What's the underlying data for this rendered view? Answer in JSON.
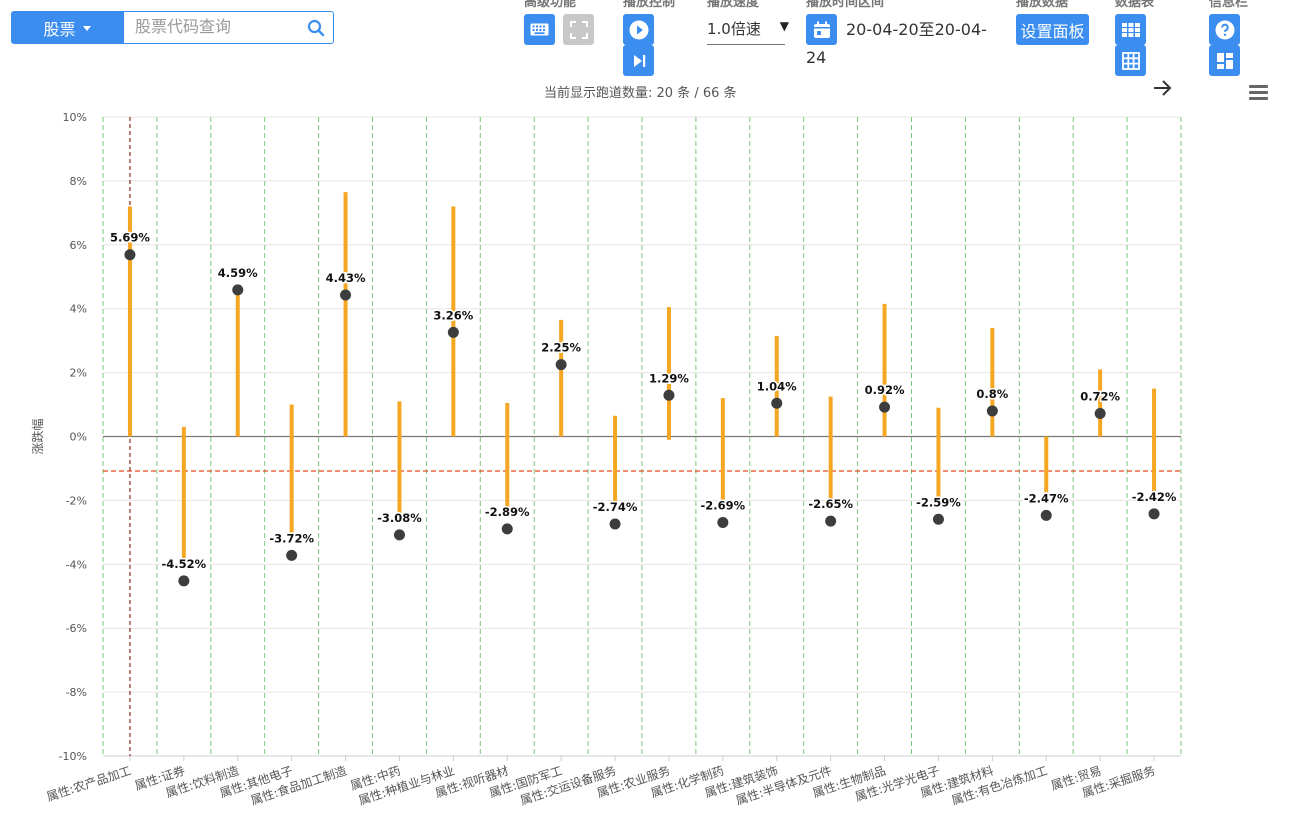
{
  "toolbar": {
    "stock_select_label": "股票",
    "search_placeholder": "股票代码查询",
    "groups": {
      "advanced": "高级功能",
      "play_control": "播放控制",
      "play_speed": "播放速度",
      "play_range": "播放时间区间",
      "play_data": "播放数据",
      "data_table": "数据表",
      "info_bar": "信息栏"
    },
    "speed_value": "1.0倍速",
    "date_range_main": "20-04-20至20-04-",
    "date_range_cont": "24",
    "settings_panel_label": "设置面板",
    "count_text": "当前显示跑道数量: 20 条 / 66 条"
  },
  "colors": {
    "accent": "#3b8ef0",
    "bar": "#f5a623",
    "dot": "#3d3d3d",
    "reference_line": "#e8491d",
    "highlight_line": "#8b2a1a",
    "grid_vertical": "#7dc77a"
  },
  "chart_data": {
    "type": "range-bar with dot",
    "ylabel": "涨跌幅",
    "ylim": [
      -10,
      10
    ],
    "yticks": [
      "10%",
      "8%",
      "6%",
      "4%",
      "2%",
      "0%",
      "-2%",
      "-4%",
      "-6%",
      "-8%",
      "-10%"
    ],
    "ytick_values": [
      10,
      8,
      6,
      4,
      2,
      0,
      -2,
      -4,
      -6,
      -8,
      -10
    ],
    "reference_line_value": -1.08,
    "highlighted_category": "属性:农产品加工",
    "categories": [
      "属性:农产品加工",
      "属性:证券",
      "属性:饮料制造",
      "属性:其他电子",
      "属性:食品加工制造",
      "属性:中药",
      "属性:种植业与林业",
      "属性:视听器材",
      "属性:国防军工",
      "属性:交运设备服务",
      "属性:农业服务",
      "属性:化学制药",
      "属性:建筑装饰",
      "属性:半导体及元件",
      "属性:生物制品",
      "属性:光学光电子",
      "属性:建筑材料",
      "属性:有色冶炼加工",
      "属性:贸易",
      "属性:采掘服务"
    ],
    "values": [
      5.69,
      -4.52,
      4.59,
      -3.72,
      4.43,
      -3.08,
      3.26,
      -2.89,
      2.25,
      -2.74,
      1.29,
      -2.69,
      1.04,
      -2.65,
      0.92,
      -2.59,
      0.8,
      -2.47,
      0.72,
      -2.42
    ],
    "labels": [
      "5.69%",
      "-4.52%",
      "4.59%",
      "-3.72%",
      "4.43%",
      "-3.08%",
      "3.26%",
      "-2.89%",
      "2.25%",
      "-2.74%",
      "1.29%",
      "-2.69%",
      "1.04%",
      "-2.65%",
      "0.92%",
      "-2.59%",
      "0.8%",
      "-2.47%",
      "0.72%",
      "-2.42%"
    ],
    "range_high": [
      7.2,
      0.3,
      4.6,
      1.0,
      7.65,
      1.1,
      7.2,
      1.05,
      3.65,
      0.65,
      4.05,
      1.2,
      3.15,
      1.25,
      4.15,
      0.9,
      3.4,
      0.0,
      2.1,
      1.5
    ],
    "range_low": [
      0.0,
      -3.8,
      0.0,
      -3.0,
      0.0,
      -2.4,
      0.0,
      -2.3,
      0.0,
      -2.1,
      -0.1,
      -2.2,
      0.0,
      -2.1,
      0.0,
      -2.1,
      0.0,
      -2.1,
      0.0,
      -1.8
    ]
  }
}
